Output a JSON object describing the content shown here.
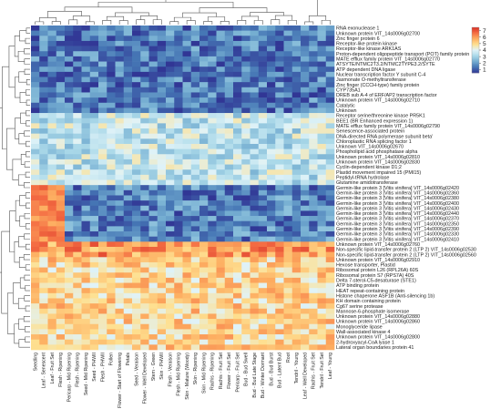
{
  "chart_data": {
    "type": "heatmap",
    "title": "",
    "rows": [
      "RNA exonuclease 1",
      "Unknown protein VIT_14s0006g02700",
      "Zinc finger protein 6",
      "Receptor-like protein kinase",
      "Receptor-like kinase ARK1AS",
      "Proton-dependent oligopeptide transport (POT) family protein",
      "MATE efflux family protein VIT_14s0006g02770",
      "ATSYTE/NTMC2T3.2/NTMC2TYPE3.2/SYTE",
      "ATP dependent DNA ligase",
      "Nuclear transcription factor Y subunit C-4",
      "Jasmonate O-methyltransferase",
      "Zinc finger (CCCH-type) family protein",
      "CYP735A1",
      "DREB sub A-4 of ERF/AP2 transcription factor",
      "Unknown protein VIT_14s0006g02710",
      "Catalytic",
      "Unknown",
      "Receptor serine/threonine kinase PR5K1",
      "BEE1 (BR Enhanced expression 1)",
      "MATE efflux family protein VIT_14s0006g02790",
      "Senescence-associated protein",
      "DNA-directed RNA polymerase subunit beta'",
      "Chloroplastic RNA splicing factor 1",
      "Unknown VIT_14s0006g02670",
      "Phospholipid acid phosphatase alpha",
      "Unknown protein VIT_14s0006g02810",
      "Unknown protein VIT_14s0006g02830",
      "Cyclin-dependent kinase D1;2",
      "Plastid movement impaired 15 (PMI15)",
      "Peptidyl-tRNA hydrolase",
      "Glutamine amidotransferase",
      "Germin-like protein 3 [Vitis vinifera] VIT_14s0006g02420",
      "Germin-like protein 3 [Vitis vinifera] VIT_14s0006g02360",
      "Germin-like protein 3 [Vitis vinifera] VIT_14s0006g02380",
      "Germin-like protein 3 [Vitis vinifera] VIT_14s0006g02400",
      "Germin-like protein 3 [Vitis vinifera] VIT_14s0006g02430",
      "Germin-like protein 3 [Vitis vinifera] VIT_14s0006g02440",
      "Germin-like protein 3 [Vitis vinifera] VIT_14s0006g02370",
      "Germin-like protein 3 [Vitis vinifera] VIT_14s0006g02350",
      "Germin-like protein 3 [Vitis vinifera] VIT_14s0006g02390",
      "Germin-like protein 3 [Vitis vinifera] VIT_14s0006g02330",
      "Germin-like protein 3 [Vitis vinifera] VIT_14s0006g02410",
      "Unknown protein VIT_14s0006g02760",
      "Non-specific lipid-transfer protein 2 (LTP 2) VIT_14s0006g02530",
      "Non-specific lipid-transfer protein 2 (LTP 2) VIT_14s0006g02560",
      "Unknown protein VIT_14s0006g02910",
      "Hexose transporter, Plastid",
      "Ribosomal protein L26 (RPL26A) 60S",
      "Ribosomal protein S7 (RPS7A) 40S",
      "Delta 7-sterol-C5-desaturase (STE1)",
      "ATP binding protein",
      "HEAT repeat-containing protein",
      "Histone chaperone ASF1B (Anti-silencing 1b)",
      "KH domain containing protein",
      "Cg67 serine protease",
      "Mannose-6-phosphate isomerase",
      "Unknown protein VIT_14s0006g02880",
      "Unknown protein VIT_14s0006g02860",
      "Monoglyceride lipase",
      "Wall-associated kinase 4",
      "Unknown protein VIT_14s0006g02800",
      "2-hydroxyacyl-CoA lyase 1",
      "Lateral organ boundaries protein 41"
    ],
    "columns": [
      "Seedling",
      "Leaf - Senescent",
      "Leaf - Fruit Set",
      "Flesh - Ripening",
      "Pericarp - Mid Ripening",
      "Flesh - Ripening",
      "Seed - Mid Ripening",
      "Seed - PHWII",
      "Flesh - PHWII",
      "Pollen",
      "Flower - Start of Flowering",
      "Petals",
      "Seed - Veraison",
      "Flower - Well Developed",
      "Stem - Green",
      "Skin - PHWII",
      "Flesh - Veraison",
      "Flesh - Mid Ripening",
      "Skin - Mature (Woody)",
      "Skin - Ripening",
      "Skin - Mid Ripening",
      "Rachis - Ripening",
      "Rachis - Fruit Set",
      "Flower - Fruit Set",
      "Pericarp - Fruit Set",
      "Bud - Bud Swell",
      "Bud - Bud Late Stage",
      "Bud - Winter Dormant",
      "Bud - Bud Burst",
      "Bud - Latent Bud",
      "Root",
      "Tendril - Young",
      "Leaf - Well Developed",
      "Rachis - Fruit Set",
      "Tendril - Fruit Set",
      "Leaf - Young"
    ],
    "value_range": [
      0.5,
      7.5
    ],
    "colorbar_ticks": [
      1,
      2,
      3,
      4,
      5,
      6,
      7
    ],
    "colorscale": [
      "#313695",
      "#4575b4",
      "#74add1",
      "#abd9e9",
      "#e0f3f8",
      "#fee090",
      "#fdae61",
      "#f46d43",
      "#d73027"
    ],
    "row_groups": [
      {
        "first_row": 0,
        "last_row": 16,
        "typical": 1.5
      },
      {
        "first_row": 17,
        "last_row": 30,
        "typical": 3.5
      },
      {
        "first_row": 31,
        "last_row": 41,
        "typical": 1.6,
        "high_columns": [
          0,
          1,
          2,
          3
        ],
        "high_value": 6.9
      },
      {
        "first_row": 42,
        "last_row": 44,
        "typical": 6.0
      },
      {
        "first_row": 45,
        "last_row": 62,
        "typical": 5.0
      }
    ],
    "legend_position": "top-right",
    "dendrograms": [
      "top",
      "left"
    ]
  }
}
